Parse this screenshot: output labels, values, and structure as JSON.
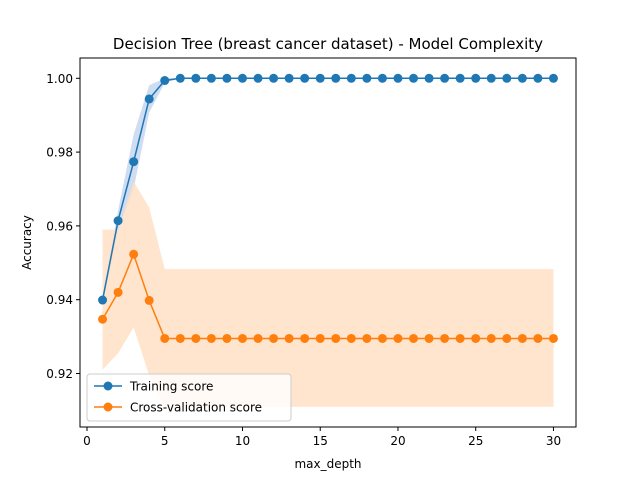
{
  "chart_data": {
    "type": "line",
    "title": "Decision Tree (breast cancer dataset) - Model Complexity",
    "xlabel": "max_depth",
    "ylabel": "Accuracy",
    "xlim": [
      -0.45,
      31.45
    ],
    "ylim": [
      0.9055,
      1.0055
    ],
    "xticks": [
      0,
      5,
      10,
      15,
      20,
      25,
      30
    ],
    "yticks": [
      0.92,
      0.94,
      0.96,
      0.98,
      1.0
    ],
    "ytick_labels": [
      "0.92",
      "0.94",
      "0.96",
      "0.98",
      "1.00"
    ],
    "grid": false,
    "legend_position": "lower left",
    "x": [
      1,
      2,
      3,
      4,
      5,
      6,
      7,
      8,
      9,
      10,
      11,
      12,
      13,
      14,
      15,
      16,
      17,
      18,
      19,
      20,
      21,
      22,
      23,
      24,
      25,
      26,
      27,
      28,
      29,
      30
    ],
    "series": [
      {
        "name": "Training score",
        "color": "#1f77b4",
        "values": [
          0.9399,
          0.9614,
          0.9774,
          0.9944,
          0.9994,
          1.0,
          1.0,
          1.0,
          1.0,
          1.0,
          1.0,
          1.0,
          1.0,
          1.0,
          1.0,
          1.0,
          1.0,
          1.0,
          1.0,
          1.0,
          1.0,
          1.0,
          1.0,
          1.0,
          1.0,
          1.0,
          1.0,
          1.0,
          1.0,
          1.0
        ],
        "band_upper": [
          0.9411,
          0.9642,
          0.9848,
          0.9981,
          1.0,
          1.0,
          1.0,
          1.0,
          1.0,
          1.0,
          1.0,
          1.0,
          1.0,
          1.0,
          1.0,
          1.0,
          1.0,
          1.0,
          1.0,
          1.0,
          1.0,
          1.0,
          1.0,
          1.0,
          1.0,
          1.0,
          1.0,
          1.0,
          1.0,
          1.0
        ],
        "band_lower": [
          0.9388,
          0.9586,
          0.97,
          0.9907,
          0.9988,
          1.0,
          1.0,
          1.0,
          1.0,
          1.0,
          1.0,
          1.0,
          1.0,
          1.0,
          1.0,
          1.0,
          1.0,
          1.0,
          1.0,
          1.0,
          1.0,
          1.0,
          1.0,
          1.0,
          1.0,
          1.0,
          1.0,
          1.0,
          1.0,
          1.0
        ],
        "band_color": "#aec7e8"
      },
      {
        "name": "Cross-validation score",
        "color": "#ff7f0e",
        "values": [
          0.9347,
          0.942,
          0.9523,
          0.9398,
          0.9295,
          0.9295,
          0.9295,
          0.9295,
          0.9295,
          0.9295,
          0.9295,
          0.9295,
          0.9295,
          0.9295,
          0.9295,
          0.9295,
          0.9295,
          0.9295,
          0.9295,
          0.9295,
          0.9295,
          0.9295,
          0.9295,
          0.9295,
          0.9295,
          0.9295,
          0.9295,
          0.9295,
          0.9295,
          0.9295
        ],
        "band_upper": [
          0.959,
          0.959,
          0.972,
          0.965,
          0.9483,
          0.9483,
          0.9483,
          0.9483,
          0.9483,
          0.9483,
          0.9483,
          0.9483,
          0.9483,
          0.9483,
          0.9483,
          0.9483,
          0.9483,
          0.9483,
          0.9483,
          0.9483,
          0.9483,
          0.9483,
          0.9483,
          0.9483,
          0.9483,
          0.9483,
          0.9483,
          0.9483,
          0.9483,
          0.9483
        ],
        "band_lower": [
          0.921,
          0.9255,
          0.9325,
          0.9195,
          0.911,
          0.911,
          0.911,
          0.911,
          0.911,
          0.911,
          0.911,
          0.911,
          0.911,
          0.911,
          0.911,
          0.911,
          0.911,
          0.911,
          0.911,
          0.911,
          0.911,
          0.911,
          0.911,
          0.911,
          0.911,
          0.911,
          0.911,
          0.911,
          0.911,
          0.911
        ],
        "band_color": "#ffdfc6"
      }
    ]
  }
}
